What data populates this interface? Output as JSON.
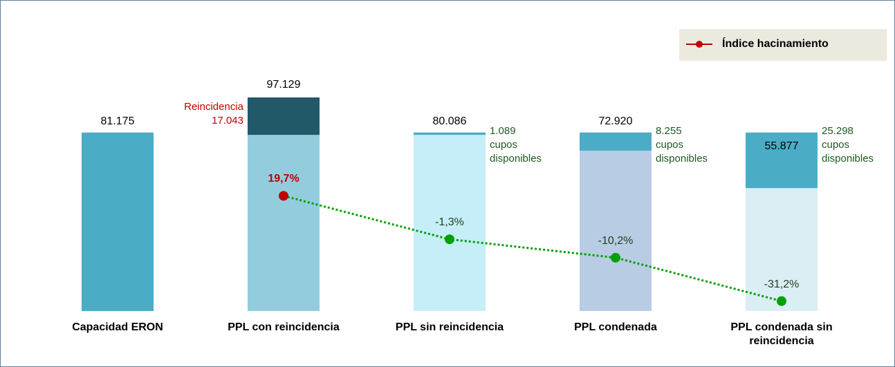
{
  "chart_data": {
    "type": "bar",
    "categories": [
      "Capacidad ERON",
      "PPL con reincidencia",
      "PPL sin reincidencia",
      "PPL condenada",
      "PPL condenada sin reincidencia"
    ],
    "ylim": [
      0,
      110000
    ],
    "y2lim": [
      -36,
      81
    ],
    "series": [
      {
        "values": [
          81175,
          80086,
          80086,
          72920,
          55877
        ],
        "value_labels": [
          "81.175",
          null,
          "80.086",
          "72.920",
          "55.877"
        ],
        "value_label_position": [
          "above",
          null,
          "above",
          "above",
          "inside"
        ],
        "colors": [
          "#4bacc6",
          "#93cddd",
          "#c6eef8",
          "#b8cce4",
          "#dbeef4"
        ]
      },
      {
        "values": [
          null,
          17043,
          1089,
          8255,
          25298
        ],
        "value_labels": [
          null,
          "17.043",
          "1.089",
          "8.255",
          "25.298"
        ],
        "segment_names": [
          null,
          "Reincidencia",
          "cupos disponibles",
          "cupos disponibles",
          "cupos disponibles"
        ],
        "colors": [
          null,
          "#215968",
          "#4bacc6",
          "#4bacc6",
          "#4bacc6"
        ],
        "label_colors": [
          null,
          "#c00000",
          "#1d5a1d",
          "#1d5a1d",
          "#1d5a1d"
        ]
      },
      {
        "name": "Índice hacinamiento",
        "type": "line",
        "axis": "y2",
        "color": "#c00000",
        "line_color": "#00a000",
        "values": [
          null,
          19.7,
          -1.3,
          -10.2,
          -31.2
        ],
        "value_labels": [
          null,
          "19,7%",
          "-1,3%",
          "-10,2%",
          "-31,2%"
        ],
        "point_colors": [
          null,
          "#c00000",
          "#00a000",
          "#00a000",
          "#00a000"
        ]
      }
    ],
    "stack_total_labels": [
      null,
      "97.129",
      null,
      null,
      null
    ],
    "legend": "top-right"
  }
}
